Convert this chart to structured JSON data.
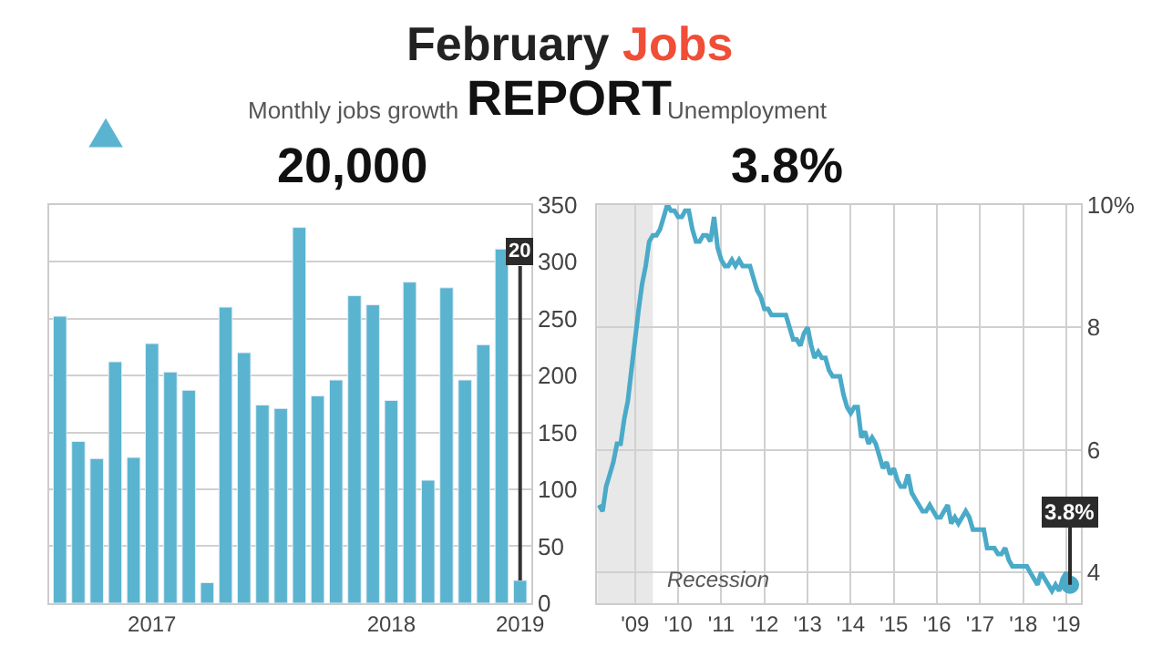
{
  "chart_data": [
    {
      "type": "bar",
      "title": "Monthly jobs growth",
      "subtitle": "20,000",
      "annotations": [
        "February",
        "Jobs",
        "REPORT"
      ],
      "categories": [
        null,
        null,
        null,
        null,
        null,
        "2017",
        null,
        null,
        null,
        null,
        null,
        null,
        null,
        null,
        null,
        null,
        null,
        null,
        "2018",
        null,
        null,
        null,
        null,
        null,
        null,
        "2019"
      ],
      "values": [
        252,
        142,
        127,
        212,
        128,
        228,
        203,
        187,
        18,
        260,
        220,
        174,
        171,
        330,
        182,
        196,
        270,
        262,
        178,
        282,
        108,
        277,
        196,
        227,
        311,
        20
      ],
      "value_labels": [
        null,
        null,
        null,
        null,
        null,
        null,
        null,
        null,
        null,
        null,
        null,
        null,
        null,
        null,
        null,
        null,
        null,
        null,
        null,
        null,
        null,
        null,
        null,
        null,
        null,
        "20"
      ],
      "color": "#5ab4cf",
      "ylim": [
        0,
        350
      ],
      "yticks": [
        0,
        50,
        100,
        150,
        200,
        250,
        300,
        350
      ],
      "grid": "y",
      "legend": false
    },
    {
      "type": "line",
      "title": "Unemployment",
      "subtitle": "3.8%",
      "x": [
        "2008-03",
        "2008-04",
        "2008-05",
        "2008-06",
        "2008-07",
        "2008-08",
        "2008-09",
        "2008-10",
        "2008-11",
        "2008-12",
        "2009-01",
        "2009-02",
        "2009-03",
        "2009-04",
        "2009-05",
        "2009-06",
        "2009-07",
        "2009-08",
        "2009-09",
        "2009-10",
        "2009-11",
        "2009-12",
        "2010-01",
        "2010-02",
        "2010-03",
        "2010-04",
        "2010-05",
        "2010-06",
        "2010-07",
        "2010-08",
        "2010-09",
        "2010-10",
        "2010-11",
        "2010-12",
        "2011-01",
        "2011-02",
        "2011-03",
        "2011-04",
        "2011-05",
        "2011-06",
        "2011-07",
        "2011-08",
        "2011-09",
        "2011-10",
        "2011-11",
        "2011-12",
        "2012-01",
        "2012-02",
        "2012-03",
        "2012-04",
        "2012-05",
        "2012-06",
        "2012-07",
        "2012-08",
        "2012-09",
        "2012-10",
        "2012-11",
        "2012-12",
        "2013-01",
        "2013-02",
        "2013-03",
        "2013-04",
        "2013-05",
        "2013-06",
        "2013-07",
        "2013-08",
        "2013-09",
        "2013-10",
        "2013-11",
        "2013-12",
        "2014-01",
        "2014-02",
        "2014-03",
        "2014-04",
        "2014-05",
        "2014-06",
        "2014-07",
        "2014-08",
        "2014-09",
        "2014-10",
        "2014-11",
        "2014-12",
        "2015-01",
        "2015-02",
        "2015-03",
        "2015-04",
        "2015-05",
        "2015-06",
        "2015-07",
        "2015-08",
        "2015-09",
        "2015-10",
        "2015-11",
        "2015-12",
        "2016-01",
        "2016-02",
        "2016-03",
        "2016-04",
        "2016-05",
        "2016-06",
        "2016-07",
        "2016-08",
        "2016-09",
        "2016-10",
        "2016-11",
        "2016-12",
        "2017-01",
        "2017-02",
        "2017-03",
        "2017-04",
        "2017-05",
        "2017-06",
        "2017-07",
        "2017-08",
        "2017-09",
        "2017-10",
        "2017-11",
        "2017-12",
        "2018-01",
        "2018-02",
        "2018-03",
        "2018-04",
        "2018-05",
        "2018-06",
        "2018-07",
        "2018-08",
        "2018-09",
        "2018-10",
        "2018-11",
        "2018-12",
        "2019-01",
        "2019-02"
      ],
      "series": [
        {
          "color": "#4aaac8",
          "values": [
            5.1,
            5.0,
            5.4,
            5.6,
            5.8,
            6.1,
            6.1,
            6.5,
            6.8,
            7.3,
            7.8,
            8.3,
            8.7,
            9.0,
            9.4,
            9.5,
            9.5,
            9.6,
            9.8,
            10.0,
            9.9,
            9.9,
            9.8,
            9.8,
            9.9,
            9.9,
            9.6,
            9.4,
            9.4,
            9.5,
            9.5,
            9.4,
            9.8,
            9.3,
            9.1,
            9.0,
            9.0,
            9.1,
            9.0,
            9.1,
            9.0,
            9.0,
            9.0,
            8.8,
            8.6,
            8.5,
            8.3,
            8.3,
            8.2,
            8.2,
            8.2,
            8.2,
            8.2,
            8.0,
            7.8,
            7.8,
            7.7,
            7.9,
            8.0,
            7.7,
            7.5,
            7.6,
            7.5,
            7.5,
            7.3,
            7.2,
            7.2,
            7.2,
            6.9,
            6.7,
            6.6,
            6.7,
            6.7,
            6.2,
            6.3,
            6.1,
            6.2,
            6.1,
            5.9,
            5.7,
            5.8,
            5.6,
            5.7,
            5.5,
            5.4,
            5.4,
            5.6,
            5.3,
            5.2,
            5.1,
            5.0,
            5.0,
            5.1,
            5.0,
            4.9,
            4.9,
            5.0,
            5.1,
            4.8,
            4.9,
            4.8,
            4.9,
            5.0,
            4.9,
            4.7,
            4.7,
            4.7,
            4.7,
            4.4,
            4.4,
            4.4,
            4.3,
            4.3,
            4.4,
            4.2,
            4.1,
            4.1,
            4.1,
            4.1,
            4.1,
            4.0,
            3.9,
            3.8,
            4.0,
            3.9,
            3.8,
            3.7,
            3.8,
            3.7,
            3.9,
            4.0,
            3.8
          ]
        }
      ],
      "annotations": [
        {
          "text": "3.8%",
          "x": "2019-02",
          "y": 3.8
        }
      ],
      "bands": [
        {
          "axis": "x",
          "from": "2008-02-15",
          "to": "2009-06",
          "label": "Recession",
          "color": "#e8e8e8"
        }
      ],
      "xlim": [
        "2008-02-15",
        "2019-05-01"
      ],
      "xticks": [
        {
          "value": "2009-01",
          "label": "'09"
        },
        {
          "value": "2010-01",
          "label": "'10"
        },
        {
          "value": "2011-01",
          "label": "'11"
        },
        {
          "value": "2012-01",
          "label": "'12"
        },
        {
          "value": "2013-01",
          "label": "'13"
        },
        {
          "value": "2014-01",
          "label": "'14"
        },
        {
          "value": "2015-01",
          "label": "'15"
        },
        {
          "value": "2016-01",
          "label": "'16"
        },
        {
          "value": "2017-01",
          "label": "'17"
        },
        {
          "value": "2018-01",
          "label": "'18"
        },
        {
          "value": "2019-01",
          "label": "'19"
        }
      ],
      "ylim": [
        3.5,
        10
      ],
      "yticks": [
        4,
        6,
        8,
        {
          "value": 10,
          "label": "10%"
        }
      ],
      "grid": true,
      "legend": false,
      "marker": "none",
      "line_style": "solid"
    }
  ]
}
